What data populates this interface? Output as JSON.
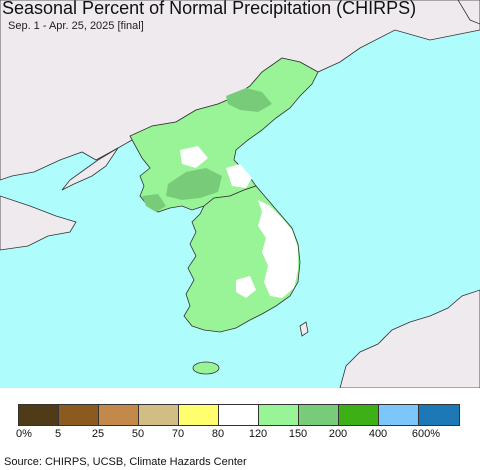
{
  "header": {
    "title": "Seasonal Percent of Normal Precipitation (CHIRPS)",
    "subtitle": "Sep. 1 - Apr. 25, 2025 [final]"
  },
  "legend": {
    "items": [
      {
        "color": "#4f3b17",
        "label": "0%"
      },
      {
        "color": "#8b5a1e",
        "label": "5"
      },
      {
        "color": "#c2894a",
        "label": "25"
      },
      {
        "color": "#d2bd84",
        "label": "50"
      },
      {
        "color": "#fefe6e",
        "label": "70"
      },
      {
        "color": "#ffffff",
        "label": "80"
      },
      {
        "color": "#98f497",
        "label": "120"
      },
      {
        "color": "#78cc79",
        "label": "150"
      },
      {
        "color": "#3daf17",
        "label": "200"
      },
      {
        "color": "#7cc6fb",
        "label": "400"
      },
      {
        "color": "#1c79b6",
        "label": "600%"
      }
    ]
  },
  "map": {
    "colors": {
      "sea": "#aefcfc",
      "land_outside": "#eeeaee",
      "above_normal": "#98f497",
      "much_above": "#78cc79",
      "near_normal": "#ffffff",
      "border": "#333333"
    }
  },
  "footer": {
    "source": "Source: CHIRPS, UCSB, Climate Hazards Center"
  }
}
